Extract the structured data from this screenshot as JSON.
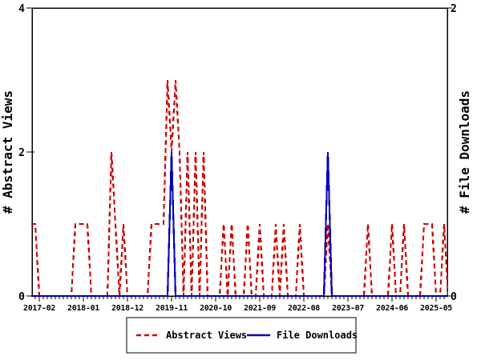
{
  "figure": {
    "background": "#ffffff",
    "axis_color": "#000000",
    "left_axis": {
      "title": "# Abstract Views",
      "tick_values": [
        0,
        2,
        4
      ],
      "range": [
        0,
        4
      ]
    },
    "right_axis": {
      "title": "# File Downloads",
      "tick_values": [
        0,
        2
      ],
      "range": [
        0,
        2
      ]
    },
    "legend": {
      "items": [
        {
          "label": "Abstract Views",
          "color": "#cc0000",
          "style": "dashed"
        },
        {
          "label": "File Downloads",
          "color": "#0000bb",
          "style": "solid"
        }
      ]
    }
  },
  "chart_data": {
    "type": "line",
    "title": "",
    "xlabel": "",
    "left_ylabel": "# Abstract Views",
    "right_ylabel": "# File Downloads",
    "left_ylim": [
      0,
      4
    ],
    "right_ylim": [
      0,
      2
    ],
    "grid": false,
    "legend_position": "bottom",
    "x_tick_labels": [
      "2017-02",
      "2018-01",
      "2018-12",
      "2019-11",
      "2020-10",
      "2021-09",
      "2022-08",
      "2023-07",
      "2024-06",
      "2025-05"
    ],
    "x": [
      "2016-12",
      "2017-01",
      "2017-02",
      "2017-03",
      "2017-04",
      "2017-05",
      "2017-06",
      "2017-07",
      "2017-08",
      "2017-09",
      "2017-10",
      "2017-11",
      "2017-12",
      "2018-01",
      "2018-02",
      "2018-03",
      "2018-04",
      "2018-05",
      "2018-06",
      "2018-07",
      "2018-08",
      "2018-09",
      "2018-10",
      "2018-11",
      "2018-12",
      "2019-01",
      "2019-02",
      "2019-03",
      "2019-04",
      "2019-05",
      "2019-06",
      "2019-07",
      "2019-08",
      "2019-09",
      "2019-10",
      "2019-11",
      "2019-12",
      "2020-01",
      "2020-02",
      "2020-03",
      "2020-04",
      "2020-05",
      "2020-06",
      "2020-07",
      "2020-08",
      "2020-09",
      "2020-10",
      "2020-11",
      "2020-12",
      "2021-01",
      "2021-02",
      "2021-03",
      "2021-04",
      "2021-05",
      "2021-06",
      "2021-07",
      "2021-08",
      "2021-09",
      "2021-10",
      "2021-11",
      "2021-12",
      "2022-01",
      "2022-02",
      "2022-03",
      "2022-04",
      "2022-05",
      "2022-06",
      "2022-07",
      "2022-08",
      "2022-09",
      "2022-10",
      "2022-11",
      "2022-12",
      "2023-01",
      "2023-02",
      "2023-03",
      "2023-04",
      "2023-05",
      "2023-06",
      "2023-07",
      "2023-08",
      "2023-09",
      "2023-10",
      "2023-11",
      "2023-12",
      "2024-01",
      "2024-02",
      "2024-03",
      "2024-04",
      "2024-05",
      "2024-06",
      "2024-07",
      "2024-08",
      "2024-09",
      "2024-10",
      "2024-11",
      "2024-12",
      "2025-01",
      "2025-02",
      "2025-03",
      "2025-04",
      "2025-05",
      "2025-06",
      "2025-07",
      "2025-08"
    ],
    "series": [
      {
        "name": "Abstract Views",
        "axis": "left",
        "color": "#cc0000",
        "line_style": "dashed",
        "values": [
          1,
          1,
          0,
          0,
          0,
          0,
          0,
          0,
          0,
          0,
          0,
          1,
          1,
          1,
          1,
          0,
          0,
          0,
          0,
          0,
          2,
          1,
          0,
          1,
          0,
          0,
          0,
          0,
          0,
          0,
          1,
          1,
          1,
          1,
          3,
          2,
          3,
          2,
          0,
          2,
          0,
          2,
          0,
          2,
          0,
          0,
          0,
          0,
          1,
          0,
          1,
          0,
          0,
          0,
          1,
          0,
          0,
          1,
          0,
          0,
          0,
          1,
          0,
          1,
          0,
          0,
          0,
          1,
          0,
          0,
          0,
          0,
          0,
          0,
          1,
          0,
          0,
          0,
          0,
          0,
          0,
          0,
          0,
          0,
          1,
          0,
          0,
          0,
          0,
          0,
          1,
          0,
          0,
          1,
          0,
          0,
          0,
          0,
          1,
          1,
          1,
          0,
          0,
          1,
          0
        ]
      },
      {
        "name": "File Downloads",
        "axis": "right",
        "color": "#0000bb",
        "line_style": "solid",
        "values": [
          0,
          0,
          0,
          0,
          0,
          0,
          0,
          0,
          0,
          0,
          0,
          0,
          0,
          0,
          0,
          0,
          0,
          0,
          0,
          0,
          0,
          0,
          0,
          0,
          0,
          0,
          0,
          0,
          0,
          0,
          0,
          0,
          0,
          0,
          0,
          1,
          0,
          0,
          0,
          0,
          0,
          0,
          0,
          0,
          0,
          0,
          0,
          0,
          0,
          0,
          0,
          0,
          0,
          0,
          0,
          0,
          0,
          0,
          0,
          0,
          0,
          0,
          0,
          0,
          0,
          0,
          0,
          0,
          0,
          0,
          0,
          0,
          0,
          0,
          1,
          0,
          0,
          0,
          0,
          0,
          0,
          0,
          0,
          0,
          0,
          0,
          0,
          0,
          0,
          0,
          0,
          0,
          0,
          0,
          0,
          0,
          0,
          0,
          0,
          0,
          0,
          0,
          0,
          0,
          0
        ]
      }
    ]
  }
}
